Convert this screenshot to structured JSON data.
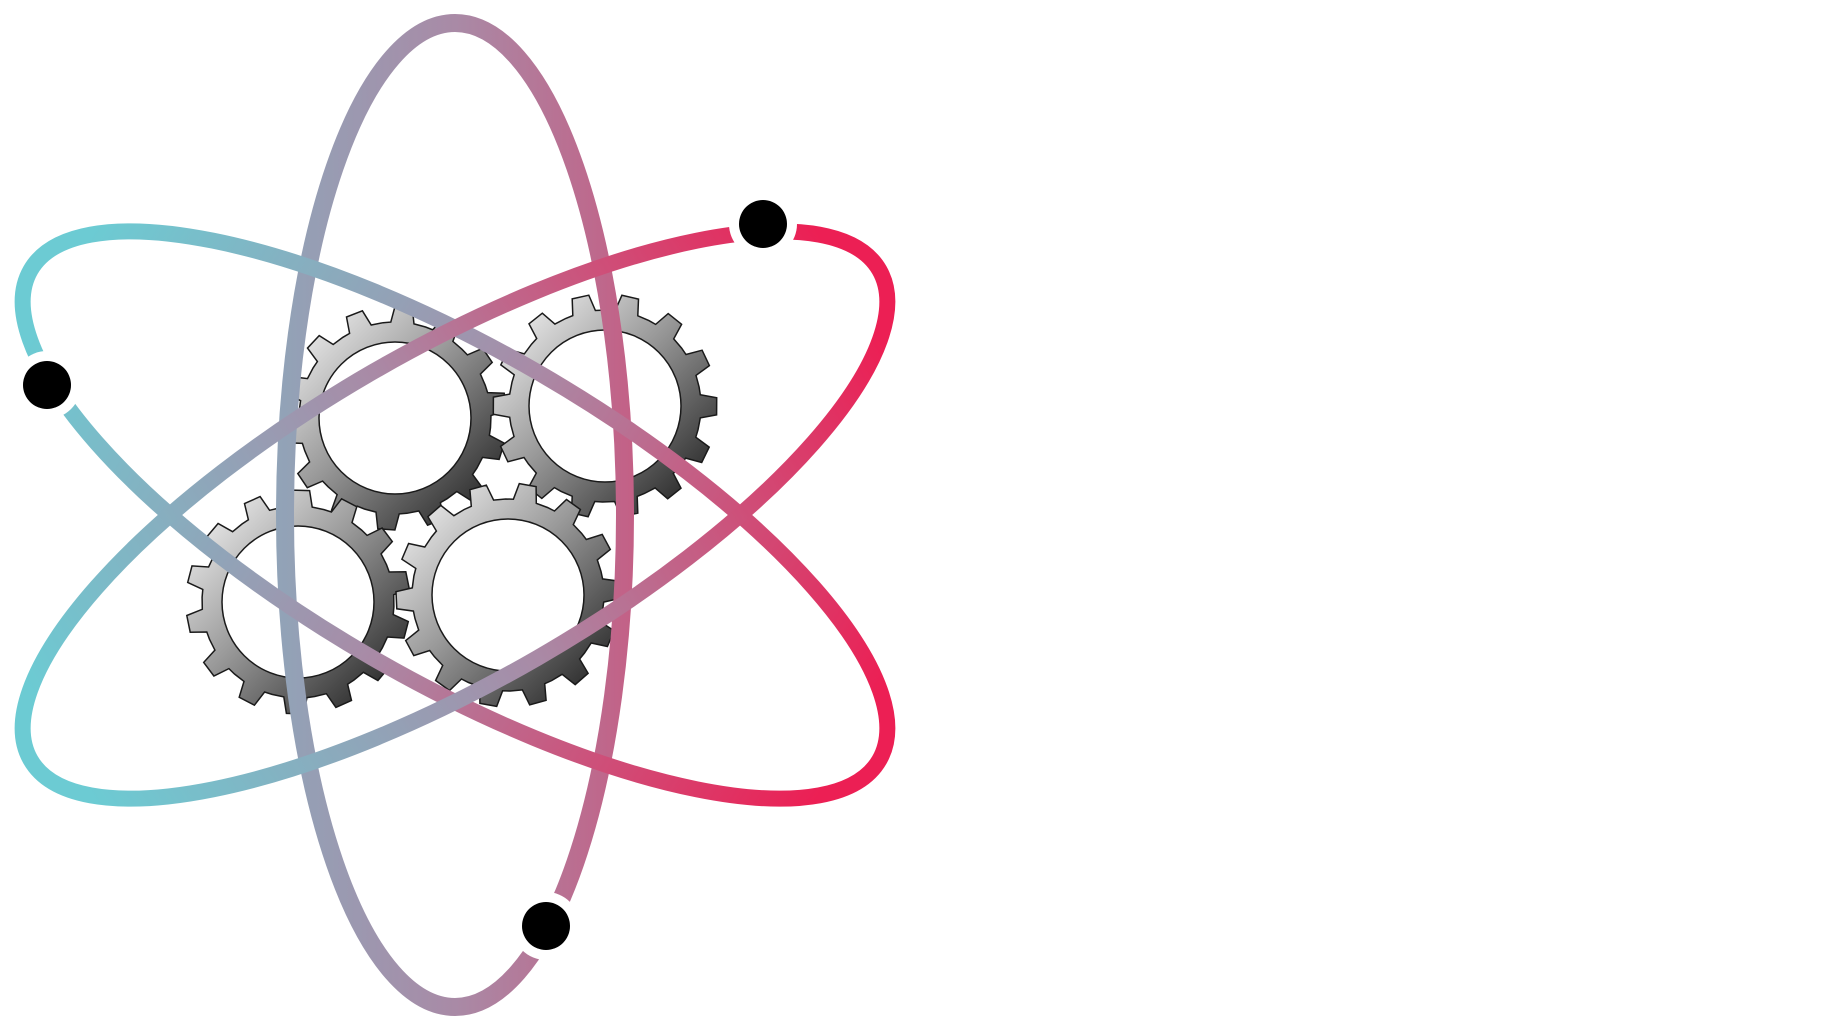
{
  "logo": {
    "icon": "atom-gears-icon",
    "colors": {
      "orbit_start": "#6ccbd3",
      "orbit_mid": "#a98aa6",
      "orbit_end": "#ec1f54",
      "electron": "#000000",
      "gear_light": "#ffffff",
      "gear_dark": "#111111",
      "gear_outline": "#1a1a1a",
      "background": "#ffffff"
    }
  }
}
